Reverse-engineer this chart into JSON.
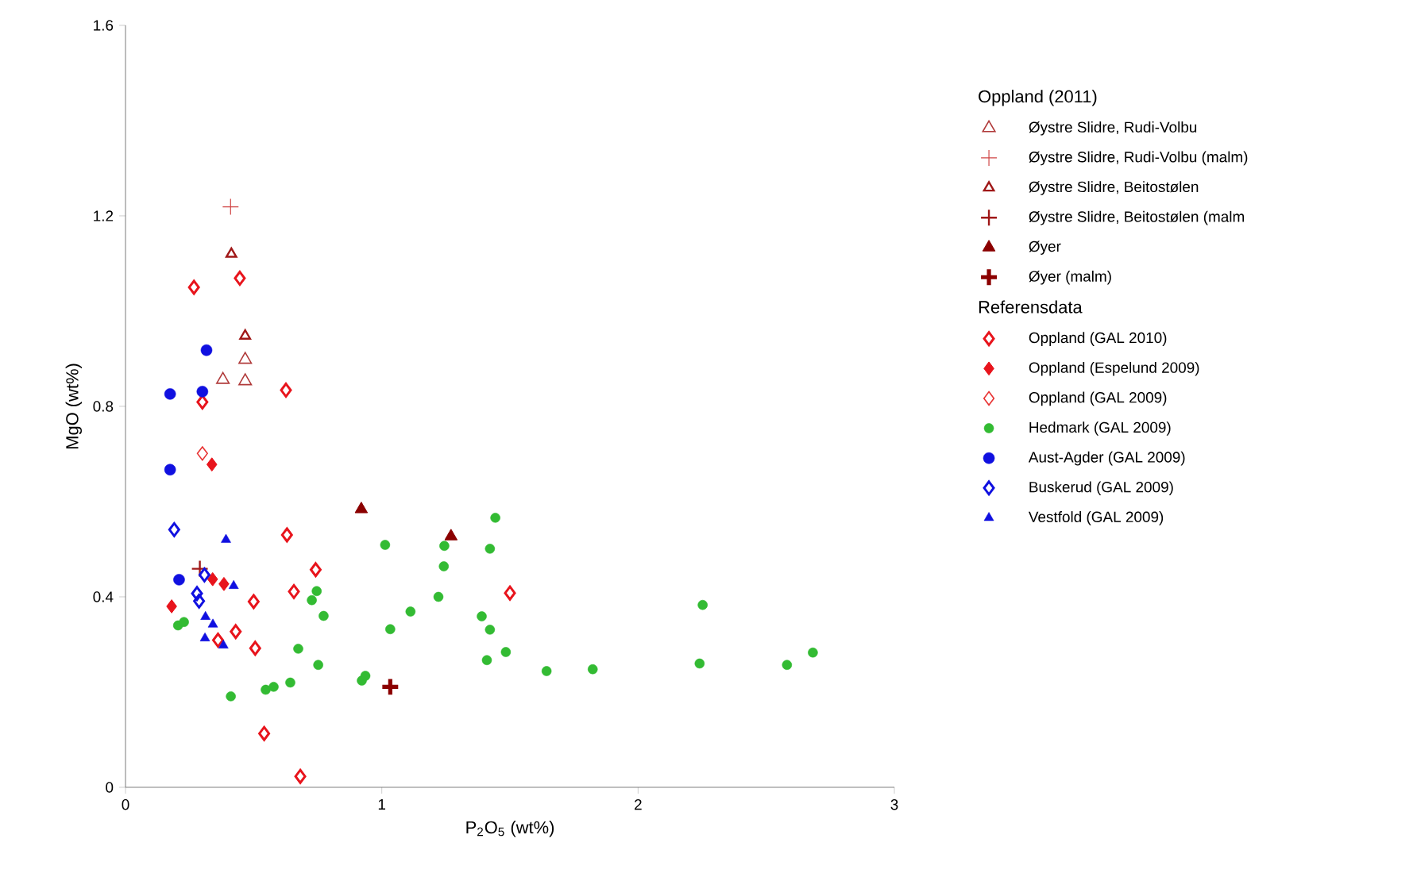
{
  "chart_data": {
    "type": "scatter",
    "xlabel": "P$_{2}$O$_{5}$ (wt%)",
    "ylabel": "MgO (wt%)",
    "xlim": [
      0,
      3
    ],
    "ylim": [
      0,
      1.6
    ],
    "xticks": [
      0,
      1,
      2,
      3
    ],
    "yticks": [
      0,
      0.4,
      0.8,
      1.2,
      1.6
    ],
    "legend": "right",
    "legend_title": "Oppland (2011)",
    "annotations": [
      "Referensdata"
    ],
    "series": [
      {
        "name": "Øystre Slidre, Rudi-Volbu",
        "color": "#b03a3a",
        "marker": "triangle",
        "x": [
          0.38,
          0.467,
          0.467
        ],
        "values": [
          0.856,
          0.853,
          0.898
        ]
      },
      {
        "name": "Øystre Slidre, Rudi-Volbu (malm)",
        "color": "#d04545",
        "marker": "cross",
        "x": [
          0.41
        ],
        "values": [
          1.219
        ]
      },
      {
        "name": "Øystre Slidre, Beitostølen",
        "color": "#a01818",
        "marker": "triangle",
        "x": [
          0.413,
          0.467
        ],
        "values": [
          1.12,
          0.948
        ]
      },
      {
        "name": "Øystre Slidre, Beitostølen (malm",
        "color": "#a01818",
        "marker": "cross",
        "x": [
          0.29
        ],
        "values": [
          0.459
        ]
      },
      {
        "name": "Øyer",
        "color": "#8b0000",
        "marker": "triangle",
        "x": [
          0.92,
          1.27
        ],
        "values": [
          0.584,
          0.527
        ]
      },
      {
        "name": "Øyer (malm)",
        "color": "#8b0000",
        "marker": "cross",
        "x": [
          1.033
        ],
        "values": [
          0.211
        ]
      },
      {
        "name": "Oppland (GAL 2010)",
        "color": "#e8141c",
        "marker": "diamond",
        "x": [
          0.267,
          0.446,
          0.626,
          0.3,
          0.63,
          0.742,
          0.657,
          0.5,
          0.43,
          0.361,
          0.506,
          0.541,
          0.682,
          1.5
        ],
        "values": [
          1.05,
          1.069,
          0.834,
          0.809,
          0.53,
          0.457,
          0.411,
          0.39,
          0.327,
          0.309,
          0.292,
          0.113,
          0.023,
          0.408
        ]
      },
      {
        "name": "Oppland (Espelund 2009)",
        "color": "#e8141c",
        "marker": "diamond",
        "x": [
          0.337,
          0.18,
          0.34,
          0.384
        ],
        "values": [
          0.678,
          0.38,
          0.437,
          0.427
        ]
      },
      {
        "name": "Oppland (GAL 2009)",
        "color": "#e83030",
        "marker": "diamond",
        "x": [
          0.3
        ],
        "values": [
          0.701
        ]
      },
      {
        "name": "Hedmark (GAL 2009)",
        "color": "#33bb33",
        "marker": "circle",
        "x": [
          0.205,
          0.228,
          0.411,
          0.547,
          0.578,
          0.643,
          0.674,
          0.752,
          0.727,
          0.746,
          0.773,
          0.922,
          0.936,
          1.033,
          1.013,
          1.112,
          1.221,
          1.242,
          1.244,
          1.39,
          1.443,
          1.422,
          1.422,
          1.41,
          1.484,
          1.643,
          1.823,
          2.252,
          2.24,
          2.581,
          2.682
        ],
        "values": [
          0.34,
          0.347,
          0.191,
          0.205,
          0.211,
          0.22,
          0.291,
          0.257,
          0.393,
          0.412,
          0.36,
          0.224,
          0.234,
          0.332,
          0.509,
          0.369,
          0.4,
          0.464,
          0.507,
          0.359,
          0.566,
          0.501,
          0.331,
          0.267,
          0.284,
          0.244,
          0.248,
          0.383,
          0.26,
          0.257,
          0.283
        ]
      },
      {
        "name": "Aust-Agder (GAL 2009)",
        "color": "#1010e0",
        "marker": "circle",
        "x": [
          0.316,
          0.174,
          0.3,
          0.174,
          0.209
        ],
        "values": [
          0.918,
          0.826,
          0.831,
          0.667,
          0.436
        ]
      },
      {
        "name": "Buskerud (GAL 2009)",
        "color": "#1010e0",
        "marker": "diamond",
        "x": [
          0.19,
          0.279,
          0.287,
          0.308
        ],
        "values": [
          0.541,
          0.407,
          0.391,
          0.446
        ]
      },
      {
        "name": "Vestfold (GAL 2009)",
        "color": "#1010e0",
        "marker": "triangle",
        "x": [
          0.392,
          0.422,
          0.312,
          0.341,
          0.31,
          0.382
        ],
        "values": [
          0.52,
          0.423,
          0.358,
          0.342,
          0.313,
          0.298
        ]
      }
    ]
  }
}
